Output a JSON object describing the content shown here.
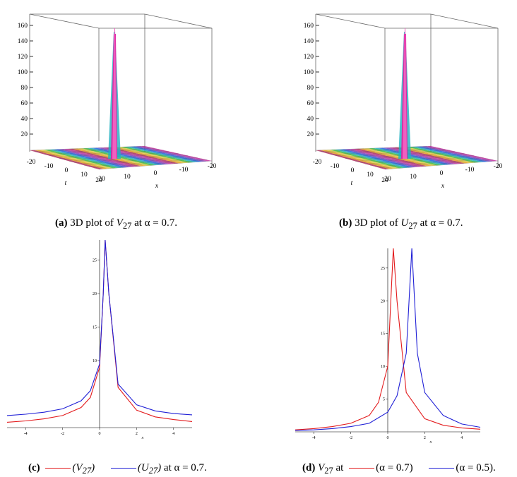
{
  "panels": [
    {
      "id": "a",
      "letter": "(a)",
      "caption_prefix": "3D plot of",
      "caption_var": "V",
      "caption_sub": "27",
      "caption_mid": "at",
      "caption_alpha": "α = 0.7.",
      "z_ticks": [
        "160",
        "140",
        "120",
        "100",
        "80",
        "60",
        "40",
        "20"
      ],
      "t_ticks": [
        "-20",
        "-10",
        "0",
        "10",
        "20"
      ],
      "x_ticks": [
        "20",
        "10",
        "0",
        "-10",
        "-20"
      ],
      "t_label": "t",
      "x_label": "x"
    },
    {
      "id": "b",
      "letter": "(b)",
      "caption_prefix": "3D plot of",
      "caption_var": "U",
      "caption_sub": "27",
      "caption_mid": "at",
      "caption_alpha": "α = 0.7.",
      "z_ticks": [
        "160",
        "140",
        "120",
        "100",
        "80",
        "60",
        "40",
        "20"
      ],
      "t_ticks": [
        "-20",
        "-10",
        "0",
        "10",
        "20"
      ],
      "x_ticks": [
        "20",
        "10",
        "0",
        "-10",
        "-20"
      ],
      "t_label": "t",
      "x_label": "x"
    }
  ],
  "caption_c": {
    "letter": "(c)",
    "legend1": "(V",
    "legend1_sub": "27",
    "legend1_end": ")",
    "legend2": "(U",
    "legend2_sub": "27",
    "legend2_end": ")",
    "tail": "at α = 0.7."
  },
  "caption_d": {
    "letter": "(d)",
    "var": "V",
    "var_sub": "27",
    "at": "at",
    "legend1": "(α = 0.7)",
    "legend2": "(α = 0.5)."
  },
  "colors": {
    "red": "#e31a1c",
    "blue": "#1f1fd6"
  },
  "chart_data": [
    {
      "type": "line",
      "panel": "c",
      "xlim": [
        -5,
        5
      ],
      "ylim": [
        0,
        28
      ],
      "x_ticks": [
        "-4",
        "-2",
        "0",
        "2",
        "4"
      ],
      "y_ticks": [
        "10",
        "15",
        "20",
        "25"
      ],
      "xlabel": "x",
      "series": [
        {
          "name": "(V27)",
          "color": "#e31a1c",
          "center": 0.3,
          "peak_x": 0.25,
          "y_at_x": [
            [
              -5,
              0.8
            ],
            [
              -4,
              1.0
            ],
            [
              -3,
              1.3
            ],
            [
              -2,
              1.8
            ],
            [
              -1,
              3.0
            ],
            [
              -0.5,
              4.5
            ],
            [
              0,
              9.0
            ],
            [
              0.2,
              20
            ],
            [
              0.3,
              28
            ],
            [
              0.5,
              20
            ],
            [
              1,
              6
            ],
            [
              2,
              2.6
            ],
            [
              3,
              1.6
            ],
            [
              4,
              1.2
            ],
            [
              5,
              0.9
            ]
          ]
        },
        {
          "name": "(U27)",
          "color": "#1f1fd6",
          "center": 0.3,
          "peak_x": 0.3,
          "y_at_x": [
            [
              -5,
              1.8
            ],
            [
              -4,
              2.0
            ],
            [
              -3,
              2.3
            ],
            [
              -2,
              2.8
            ],
            [
              -1,
              4.0
            ],
            [
              -0.5,
              5.5
            ],
            [
              0,
              9.5
            ],
            [
              0.2,
              20
            ],
            [
              0.3,
              28
            ],
            [
              0.5,
              20
            ],
            [
              1,
              6.5
            ],
            [
              2,
              3.4
            ],
            [
              3,
              2.5
            ],
            [
              4,
              2.1
            ],
            [
              5,
              1.9
            ]
          ]
        }
      ]
    },
    {
      "type": "line",
      "panel": "d",
      "xlim": [
        -5,
        5
      ],
      "ylim": [
        0,
        28
      ],
      "x_ticks": [
        "-4",
        "-2",
        "0",
        "2",
        "4"
      ],
      "y_ticks": [
        "5",
        "10",
        "15",
        "20",
        "25"
      ],
      "xlabel": "x",
      "series": [
        {
          "name": "(α = 0.7)",
          "color": "#e31a1c",
          "center": 0.3,
          "y_at_x": [
            [
              -5,
              0.3
            ],
            [
              -4,
              0.5
            ],
            [
              -3,
              0.8
            ],
            [
              -2,
              1.3
            ],
            [
              -1,
              2.5
            ],
            [
              -0.5,
              4.5
            ],
            [
              0,
              10
            ],
            [
              0.2,
              22
            ],
            [
              0.3,
              28
            ],
            [
              0.5,
              20
            ],
            [
              1,
              6
            ],
            [
              2,
              2.0
            ],
            [
              3,
              1.0
            ],
            [
              4,
              0.6
            ],
            [
              5,
              0.4
            ]
          ]
        },
        {
          "name": "(α = 0.5)",
          "color": "#1f1fd6",
          "center": 1.3,
          "y_at_x": [
            [
              -5,
              0.2
            ],
            [
              -4,
              0.3
            ],
            [
              -3,
              0.5
            ],
            [
              -2,
              0.8
            ],
            [
              -1,
              1.3
            ],
            [
              0,
              3.0
            ],
            [
              0.5,
              5.5
            ],
            [
              1,
              12
            ],
            [
              1.3,
              28
            ],
            [
              1.6,
              12
            ],
            [
              2,
              6
            ],
            [
              3,
              2.5
            ],
            [
              4,
              1.2
            ],
            [
              5,
              0.7
            ]
          ]
        }
      ]
    }
  ]
}
